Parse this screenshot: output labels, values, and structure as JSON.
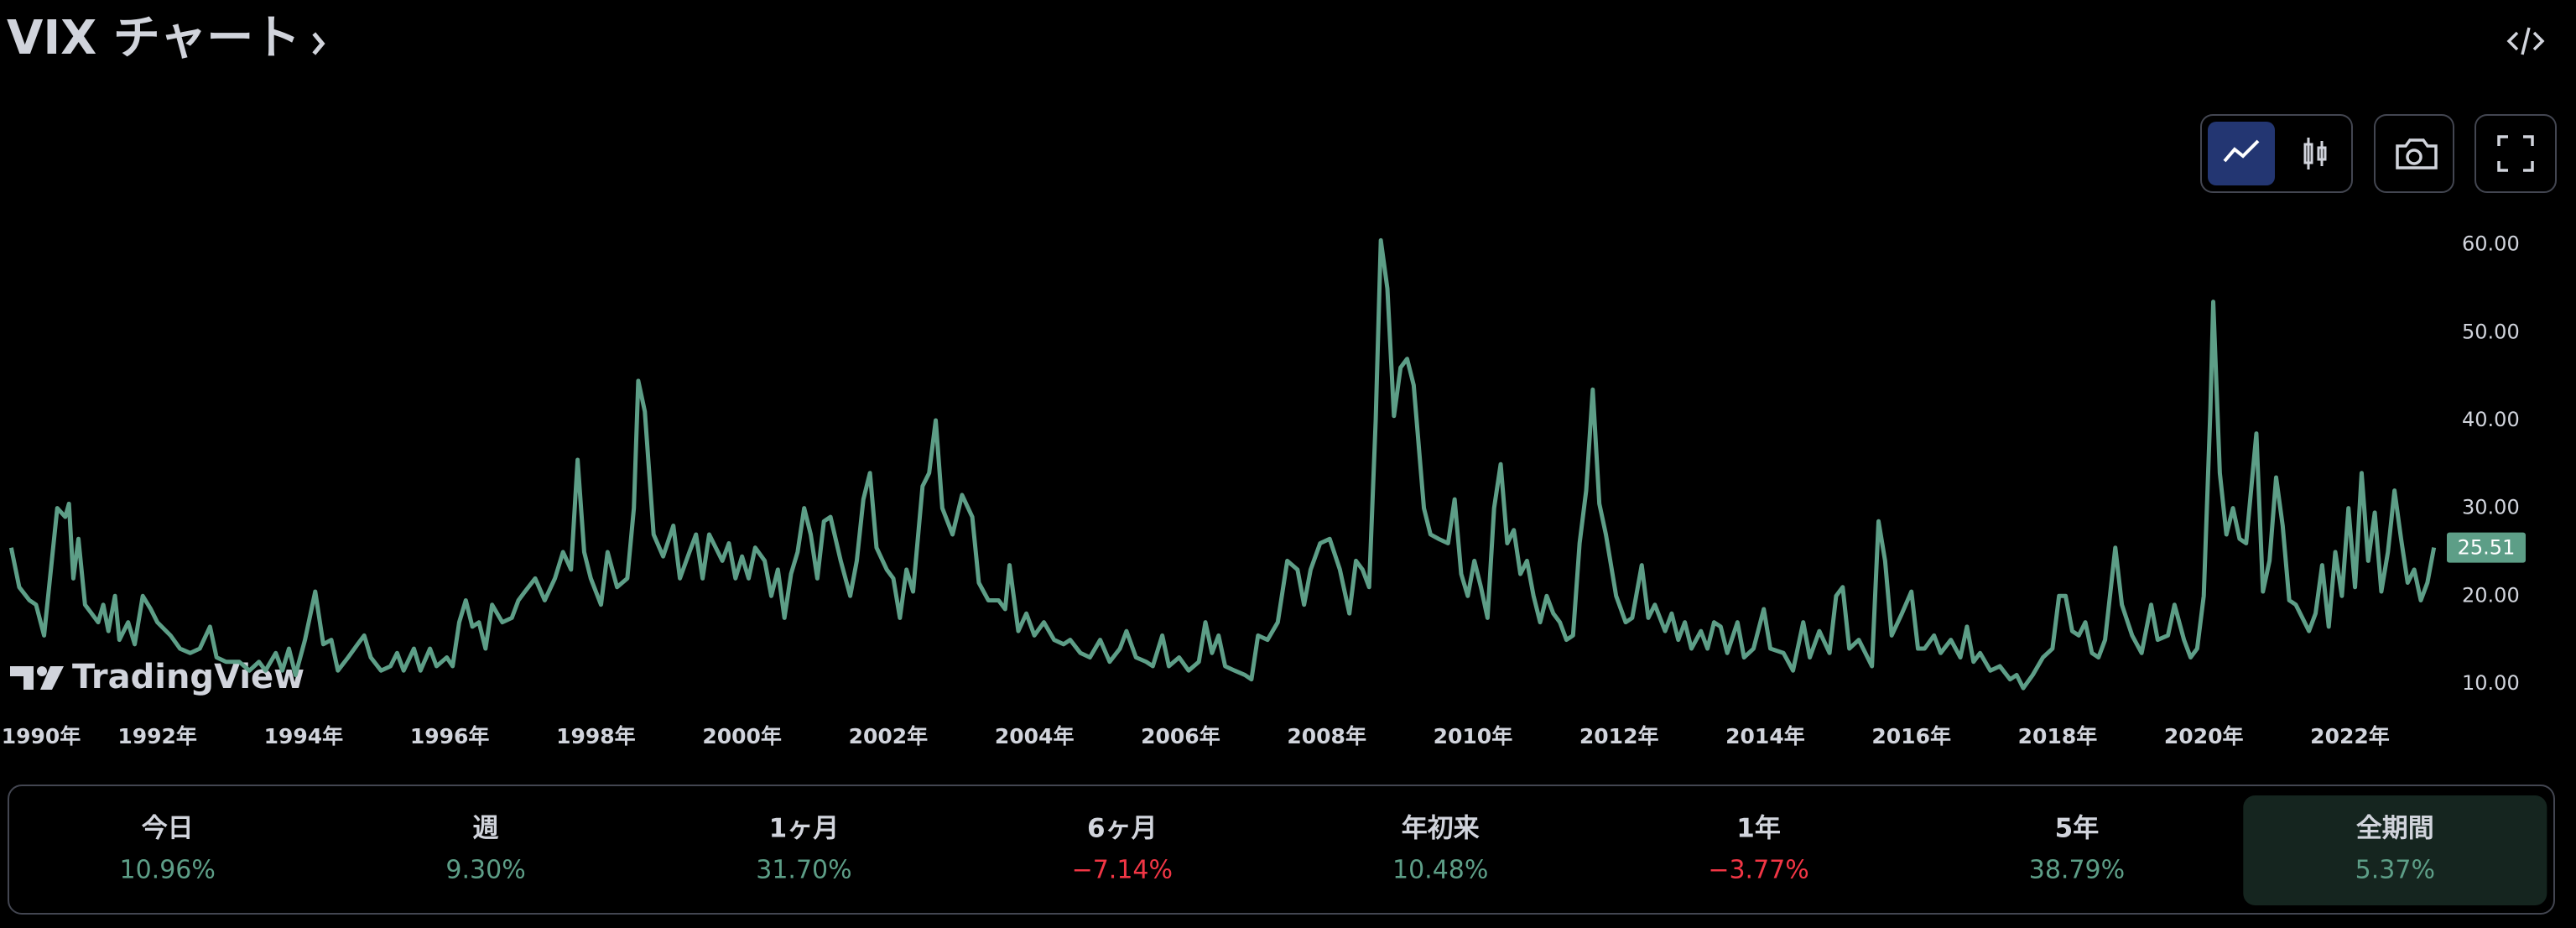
{
  "header": {
    "title": "VIX チャート"
  },
  "watermark": "TradingView",
  "chart_data": {
    "type": "line",
    "color": "#5d9e87",
    "grid": false,
    "xlim": [
      1989.95,
      2023.28
    ],
    "ylim": [
      5.5,
      63.5
    ],
    "xticks": [
      {
        "value": 1990,
        "label": "1990年"
      },
      {
        "value": 1992,
        "label": "1992年"
      },
      {
        "value": 1994,
        "label": "1994年"
      },
      {
        "value": 1996,
        "label": "1996年"
      },
      {
        "value": 1998,
        "label": "1998年"
      },
      {
        "value": 2000,
        "label": "2000年"
      },
      {
        "value": 2002,
        "label": "2002年"
      },
      {
        "value": 2004,
        "label": "2004年"
      },
      {
        "value": 2006,
        "label": "2006年"
      },
      {
        "value": 2008,
        "label": "2008年"
      },
      {
        "value": 2010,
        "label": "2010年"
      },
      {
        "value": 2012,
        "label": "2012年"
      },
      {
        "value": 2014,
        "label": "2014年"
      },
      {
        "value": 2016,
        "label": "2016年"
      },
      {
        "value": 2018,
        "label": "2018年"
      },
      {
        "value": 2020,
        "label": "2020年"
      },
      {
        "value": 2022,
        "label": "2022年"
      }
    ],
    "yticks": [
      {
        "value": 10,
        "label": "10.00"
      },
      {
        "value": 20,
        "label": "20.00"
      },
      {
        "value": 30,
        "label": "30.00"
      },
      {
        "value": 40,
        "label": "40.00"
      },
      {
        "value": 50,
        "label": "50.00"
      },
      {
        "value": 60,
        "label": "60.00"
      }
    ],
    "x": [
      1990.0,
      1990.11,
      1990.25,
      1990.34,
      1990.45,
      1990.63,
      1990.74,
      1990.79,
      1990.85,
      1990.92,
      1991.01,
      1991.1,
      1991.19,
      1991.26,
      1991.33,
      1991.42,
      1991.48,
      1991.6,
      1991.69,
      1991.8,
      1991.91,
      1992.0,
      1992.18,
      1992.31,
      1992.45,
      1992.58,
      1992.72,
      1992.81,
      1992.94,
      1993.12,
      1993.26,
      1993.39,
      1993.48,
      1993.62,
      1993.71,
      1993.8,
      1993.89,
      1994.02,
      1994.16,
      1994.27,
      1994.38,
      1994.47,
      1994.61,
      1994.74,
      1994.83,
      1994.92,
      1995.06,
      1995.19,
      1995.28,
      1995.37,
      1995.51,
      1995.6,
      1995.73,
      1995.82,
      1995.96,
      1996.04,
      1996.13,
      1996.22,
      1996.31,
      1996.4,
      1996.49,
      1996.58,
      1996.72,
      1996.85,
      1996.94,
      1997.03,
      1997.17,
      1997.3,
      1997.44,
      1997.55,
      1997.66,
      1997.75,
      1997.84,
      1997.93,
      1998.07,
      1998.16,
      1998.29,
      1998.43,
      1998.52,
      1998.58,
      1998.67,
      1998.79,
      1998.92,
      1999.06,
      1999.15,
      1999.28,
      1999.37,
      1999.46,
      1999.55,
      1999.64,
      1999.73,
      1999.82,
      1999.91,
      2000.0,
      2000.09,
      2000.18,
      2000.31,
      2000.4,
      2000.49,
      2000.58,
      2000.67,
      2000.76,
      2000.85,
      2000.94,
      2001.03,
      2001.12,
      2001.21,
      2001.35,
      2001.48,
      2001.57,
      2001.66,
      2001.75,
      2001.84,
      2001.98,
      2002.07,
      2002.16,
      2002.25,
      2002.34,
      2002.47,
      2002.56,
      2002.65,
      2002.74,
      2002.88,
      2003.01,
      2003.15,
      2003.24,
      2003.37,
      2003.51,
      2003.6,
      2003.66,
      2003.78,
      2003.89,
      2004.0,
      2004.13,
      2004.27,
      2004.4,
      2004.49,
      2004.63,
      2004.76,
      2004.9,
      2005.03,
      2005.17,
      2005.26,
      2005.39,
      2005.53,
      2005.62,
      2005.75,
      2005.84,
      2005.98,
      2006.11,
      2006.25,
      2006.34,
      2006.43,
      2006.52,
      2006.61,
      2006.74,
      2006.88,
      2006.97,
      2007.06,
      2007.19,
      2007.33,
      2007.46,
      2007.6,
      2007.69,
      2007.78,
      2007.91,
      2008.04,
      2008.18,
      2008.31,
      2008.4,
      2008.49,
      2008.58,
      2008.67,
      2008.74,
      2008.83,
      2008.92,
      2009.01,
      2009.1,
      2009.19,
      2009.33,
      2009.42,
      2009.53,
      2009.66,
      2009.75,
      2009.84,
      2009.93,
      2010.02,
      2010.11,
      2010.2,
      2010.29,
      2010.38,
      2010.47,
      2010.56,
      2010.65,
      2010.74,
      2010.83,
      2010.92,
      2011.01,
      2011.1,
      2011.19,
      2011.28,
      2011.37,
      2011.46,
      2011.55,
      2011.64,
      2011.73,
      2011.82,
      2011.96,
      2012.09,
      2012.18,
      2012.31,
      2012.4,
      2012.49,
      2012.63,
      2012.72,
      2012.81,
      2012.9,
      2012.99,
      2013.12,
      2013.21,
      2013.3,
      2013.39,
      2013.48,
      2013.62,
      2013.71,
      2013.84,
      2013.98,
      2014.07,
      2014.25,
      2014.38,
      2014.52,
      2014.61,
      2014.74,
      2014.88,
      2014.97,
      2015.06,
      2015.15,
      2015.28,
      2015.37,
      2015.46,
      2015.55,
      2015.64,
      2015.73,
      2015.87,
      2016.0,
      2016.09,
      2016.18,
      2016.31,
      2016.4,
      2016.54,
      2016.67,
      2016.76,
      2016.85,
      2016.94,
      2017.08,
      2017.21,
      2017.35,
      2017.44,
      2017.53,
      2017.66,
      2017.8,
      2017.93,
      2018.02,
      2018.11,
      2018.2,
      2018.29,
      2018.38,
      2018.47,
      2018.56,
      2018.65,
      2018.79,
      2018.88,
      2019.02,
      2019.15,
      2019.28,
      2019.37,
      2019.51,
      2019.6,
      2019.73,
      2019.82,
      2019.91,
      2020.0,
      2020.09,
      2020.13,
      2020.22,
      2020.31,
      2020.4,
      2020.49,
      2020.58,
      2020.72,
      2020.81,
      2020.9,
      2020.99,
      2021.08,
      2021.17,
      2021.26,
      2021.35,
      2021.44,
      2021.53,
      2021.62,
      2021.71,
      2021.8,
      2021.89,
      2021.98,
      2022.07,
      2022.16,
      2022.25,
      2022.34,
      2022.43,
      2022.52,
      2022.61,
      2022.7,
      2022.79,
      2022.88,
      2022.97,
      2023.06,
      2023.15
    ],
    "values": [
      25.5,
      21,
      19.5,
      19,
      15.5,
      30,
      29,
      30.5,
      22,
      26.5,
      19,
      18,
      17,
      19,
      16,
      20,
      15,
      17,
      14.5,
      20,
      18.5,
      17,
      15.5,
      14,
      13.5,
      14,
      16.5,
      13,
      12.5,
      12.5,
      11.5,
      12.5,
      11.5,
      13.5,
      11.5,
      14,
      11,
      15,
      20.5,
      14.5,
      15,
      11.5,
      13,
      14.5,
      15.5,
      13,
      11.5,
      12,
      13.5,
      11.5,
      14,
      11.5,
      14,
      12,
      13,
      12,
      17,
      19.5,
      16.5,
      17,
      14,
      19,
      17,
      17.5,
      19.5,
      20.5,
      22,
      19.5,
      22,
      25,
      23,
      35.5,
      25,
      22,
      19,
      25,
      21,
      22,
      30,
      44.5,
      41,
      27,
      24.5,
      28,
      22,
      25,
      27,
      22,
      27,
      25.5,
      24,
      26,
      22,
      24.5,
      22,
      25.5,
      24,
      20,
      23,
      17.5,
      22.5,
      25,
      30,
      27,
      22,
      28.5,
      29,
      24,
      20,
      24,
      31,
      34,
      25.5,
      23,
      22,
      17.5,
      23,
      20.5,
      32.5,
      34,
      40,
      30,
      27,
      31.5,
      29,
      21.5,
      19.5,
      19.5,
      18.5,
      23.5,
      16,
      18,
      15.5,
      17,
      15,
      14.5,
      15,
      13.5,
      13,
      15,
      12.5,
      14,
      16,
      13,
      12.5,
      12,
      15.5,
      12,
      13,
      11.5,
      12.5,
      17,
      13.5,
      15.5,
      12,
      11.5,
      11,
      10.5,
      15.5,
      15,
      17,
      24,
      23,
      19,
      23,
      26,
      26.5,
      23,
      18,
      24,
      23,
      21,
      40,
      60.5,
      55,
      40.5,
      46,
      47,
      44,
      30,
      27,
      26.5,
      26,
      31,
      22.5,
      20,
      24,
      21,
      17.5,
      30,
      35,
      26,
      27.5,
      22.5,
      24,
      20,
      17,
      20,
      18,
      17,
      15,
      15.5,
      26,
      32,
      43.5,
      30.5,
      27,
      20,
      17,
      17.5,
      23.5,
      17.5,
      19,
      16,
      18,
      15,
      17,
      14,
      16,
      14,
      17,
      16.5,
      13.5,
      17,
      13,
      14,
      18.5,
      14,
      13.5,
      11.5,
      17,
      13,
      16,
      13.5,
      20,
      21,
      14,
      15,
      13.5,
      12,
      28.5,
      24,
      15.5,
      18,
      20.5,
      14,
      14,
      15.5,
      13.5,
      15,
      13,
      16.5,
      12.5,
      13.5,
      11.5,
      12,
      10.5,
      11,
      9.5,
      11,
      13,
      14,
      20,
      20,
      16,
      15.5,
      17,
      13.5,
      13,
      15,
      25.5,
      19,
      15.5,
      13.5,
      19,
      15,
      15.5,
      19,
      15,
      13,
      14,
      20,
      41,
      53.5,
      34,
      27,
      30,
      26.5,
      26,
      38.5,
      20.5,
      24,
      33.5,
      28,
      19.5,
      19,
      17.5,
      16,
      18,
      23.5,
      16.5,
      25,
      20,
      30,
      21,
      34,
      24,
      29.5,
      20.5,
      25,
      32,
      26.5,
      21.5,
      23,
      19.5,
      21.5,
      25.51
    ]
  },
  "periods": [
    {
      "label": "今日",
      "change": "10.96%",
      "color": "#5d9e87"
    },
    {
      "label": "週",
      "change": "9.30%",
      "color": "#5d9e87"
    },
    {
      "label": "1ヶ月",
      "change": "31.70%",
      "color": "#5d9e87"
    },
    {
      "label": "6ヶ月",
      "change": "−7.14%",
      "color": "#f23645"
    },
    {
      "label": "年初来",
      "change": "10.48%",
      "color": "#5d9e87"
    },
    {
      "label": "1年",
      "change": "−3.77%",
      "color": "#f23645"
    },
    {
      "label": "5年",
      "change": "38.79%",
      "color": "#5d9e87"
    },
    {
      "label": "全期間",
      "change": "5.37%",
      "color": "#5d9e87"
    }
  ],
  "selected_period": 7
}
